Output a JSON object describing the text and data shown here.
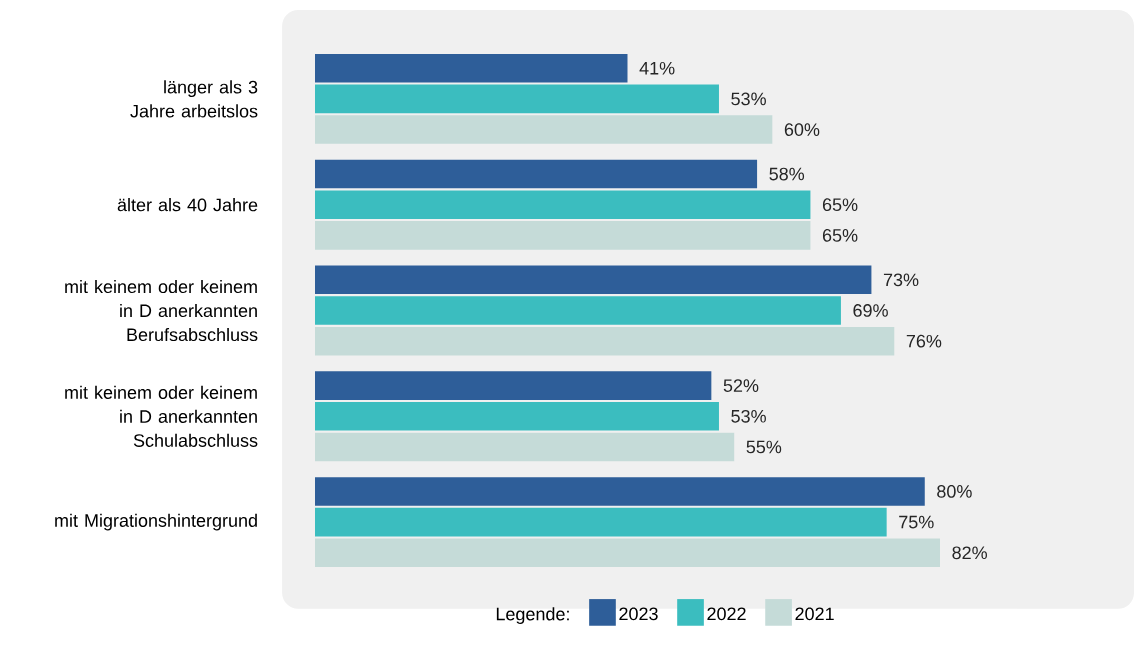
{
  "chart_data": {
    "type": "bar",
    "orientation": "horizontal",
    "categories": [
      "länger als 3 Jahre arbeitslos",
      "älter als 40 Jahre",
      "mit keinem oder keinem in D anerkannten Berufsabschluss",
      "mit keinem oder keinem in D anerkannten Schulabschluss",
      "mit Migrationshintergrund"
    ],
    "series": [
      {
        "name": "2023",
        "color": "#2e5e99",
        "values": [
          41,
          58,
          73,
          52,
          80
        ],
        "value_labels": [
          "41%",
          "58%",
          "73%",
          "52%",
          "80%"
        ]
      },
      {
        "name": "2022",
        "color": "#3bbdbf",
        "values": [
          53,
          65,
          69,
          53,
          75
        ],
        "value_labels": [
          "53%",
          "65%",
          "69%",
          "53%",
          "75%"
        ]
      },
      {
        "name": "2021",
        "color": "#c5dbd8",
        "values": [
          60,
          65,
          76,
          55,
          82
        ],
        "value_labels": [
          "60%",
          "65%",
          "76%",
          "55%",
          "82%"
        ]
      }
    ],
    "legend": "bottom",
    "legend_title": "Legende:"
  }
}
